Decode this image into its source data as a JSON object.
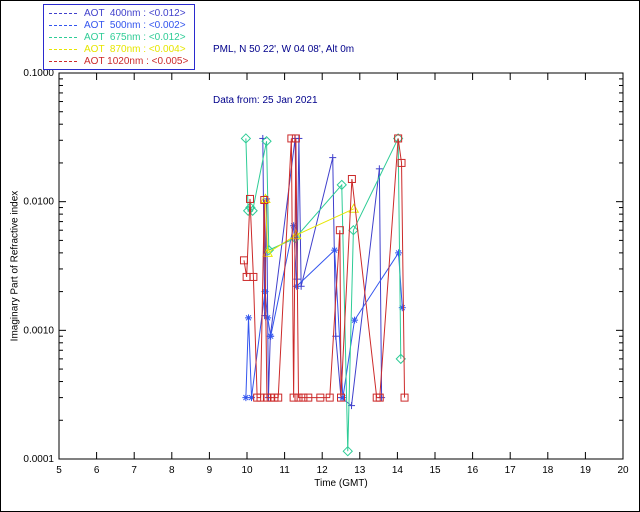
{
  "header": {
    "line1": "PML, N 50 22', W 04 08', Alt 0m",
    "line2": "Data from: 25 Jan 2021"
  },
  "chart_data": {
    "type": "line",
    "title": "",
    "xlabel": "Time (GMT)",
    "ylabel": "Imaginary Part of Refractive index",
    "xlim": [
      5,
      20
    ],
    "ylim": [
      0.0001,
      0.1
    ],
    "yscale": "log",
    "grid": false,
    "legend_position": "top-left-outside",
    "x_ticks": [
      5,
      6,
      7,
      8,
      9,
      10,
      11,
      12,
      13,
      14,
      15,
      16,
      17,
      18,
      19,
      20
    ],
    "y_ticks": [
      0.0001,
      0.001,
      0.01,
      0.1
    ],
    "y_tick_labels": [
      "0.0001",
      "0.0010",
      "0.0100",
      "0.1000"
    ],
    "axis_color": "#000000",
    "header_color": "#00008b",
    "series": [
      {
        "name": "AOT 400nm",
        "legend": "AOT  400nm : <0.012>",
        "aot_value": "<0.012>",
        "color": "#4040cc",
        "symbol": "plus",
        "points": [
          [
            10.42,
            0.031
          ],
          [
            10.47,
            0.0013
          ],
          [
            10.52,
            0.0105
          ],
          [
            10.57,
            0.0003
          ],
          [
            10.62,
            0.0009
          ],
          [
            11.28,
            0.031
          ],
          [
            11.33,
            0.0025
          ],
          [
            11.38,
            0.031
          ],
          [
            11.44,
            0.0022
          ],
          [
            12.28,
            0.022
          ],
          [
            12.36,
            0.0009
          ],
          [
            12.5,
            0.0003
          ],
          [
            12.78,
            0.00026
          ],
          [
            13.52,
            0.018
          ],
          [
            13.58,
            0.0003
          ]
        ]
      },
      {
        "name": "AOT 500nm",
        "legend": "AOT  500nm : <0.002>",
        "aot_value": "<0.002>",
        "color": "#3355ee",
        "symbol": "asterisk",
        "points": [
          [
            9.97,
            0.0003
          ],
          [
            10.04,
            0.00125
          ],
          [
            10.12,
            0.0003
          ],
          [
            10.48,
            0.002
          ],
          [
            10.55,
            0.00125
          ],
          [
            10.63,
            0.0009
          ],
          [
            11.24,
            0.0065
          ],
          [
            11.32,
            0.0022
          ],
          [
            12.33,
            0.0042
          ],
          [
            12.55,
            0.0003
          ],
          [
            12.86,
            0.0012
          ],
          [
            14.03,
            0.004
          ],
          [
            14.13,
            0.0015
          ]
        ]
      },
      {
        "name": "AOT 675nm",
        "legend": "AOT  675nm : <0.012>",
        "aot_value": "<0.012>",
        "color": "#2ecc96",
        "symbol": "diamond",
        "points": [
          [
            9.97,
            0.031
          ],
          [
            10.03,
            0.0085
          ],
          [
            10.09,
            0.009
          ],
          [
            10.15,
            0.0085
          ],
          [
            10.52,
            0.0295
          ],
          [
            10.58,
            0.0042
          ],
          [
            11.28,
            0.0052
          ],
          [
            12.52,
            0.0135
          ],
          [
            12.68,
            0.000115
          ],
          [
            12.83,
            0.006
          ],
          [
            14.02,
            0.031
          ],
          [
            14.09,
            0.0006
          ]
        ]
      },
      {
        "name": "AOT 870nm",
        "legend": "AOT  870nm : <0.004>",
        "aot_value": "<0.004>",
        "color": "#e6e600",
        "symbol": "triangle",
        "points": [
          [
            10.49,
            0.0105
          ],
          [
            10.55,
            0.004
          ],
          [
            11.31,
            0.0055
          ],
          [
            12.84,
            0.0088
          ]
        ]
      },
      {
        "name": "AOT 1020nm",
        "legend": "AOT 1020nm : <0.005>",
        "aot_value": "<0.005>",
        "color": "#cc2a2a",
        "symbol": "square",
        "points": [
          [
            9.92,
            0.0035
          ],
          [
            9.99,
            0.0026
          ],
          [
            10.08,
            0.0105
          ],
          [
            10.17,
            0.0026
          ],
          [
            10.27,
            0.0003
          ],
          [
            10.36,
            0.0003
          ],
          [
            10.46,
            0.0103
          ],
          [
            10.53,
            0.0003
          ],
          [
            10.63,
            0.0003
          ],
          [
            10.73,
            0.0003
          ],
          [
            10.83,
            0.0003
          ],
          [
            11.18,
            0.031
          ],
          [
            11.24,
            0.0003
          ],
          [
            11.3,
            0.031
          ],
          [
            11.37,
            0.0003
          ],
          [
            11.5,
            0.0003
          ],
          [
            11.63,
            0.0003
          ],
          [
            11.95,
            0.0003
          ],
          [
            12.2,
            0.0003
          ],
          [
            12.47,
            0.006
          ],
          [
            12.5,
            0.0003
          ],
          [
            12.79,
            0.015
          ],
          [
            13.45,
            0.0003
          ],
          [
            13.53,
            0.0003
          ],
          [
            14.02,
            0.031
          ],
          [
            14.11,
            0.02
          ],
          [
            14.19,
            0.0003
          ]
        ]
      }
    ]
  }
}
